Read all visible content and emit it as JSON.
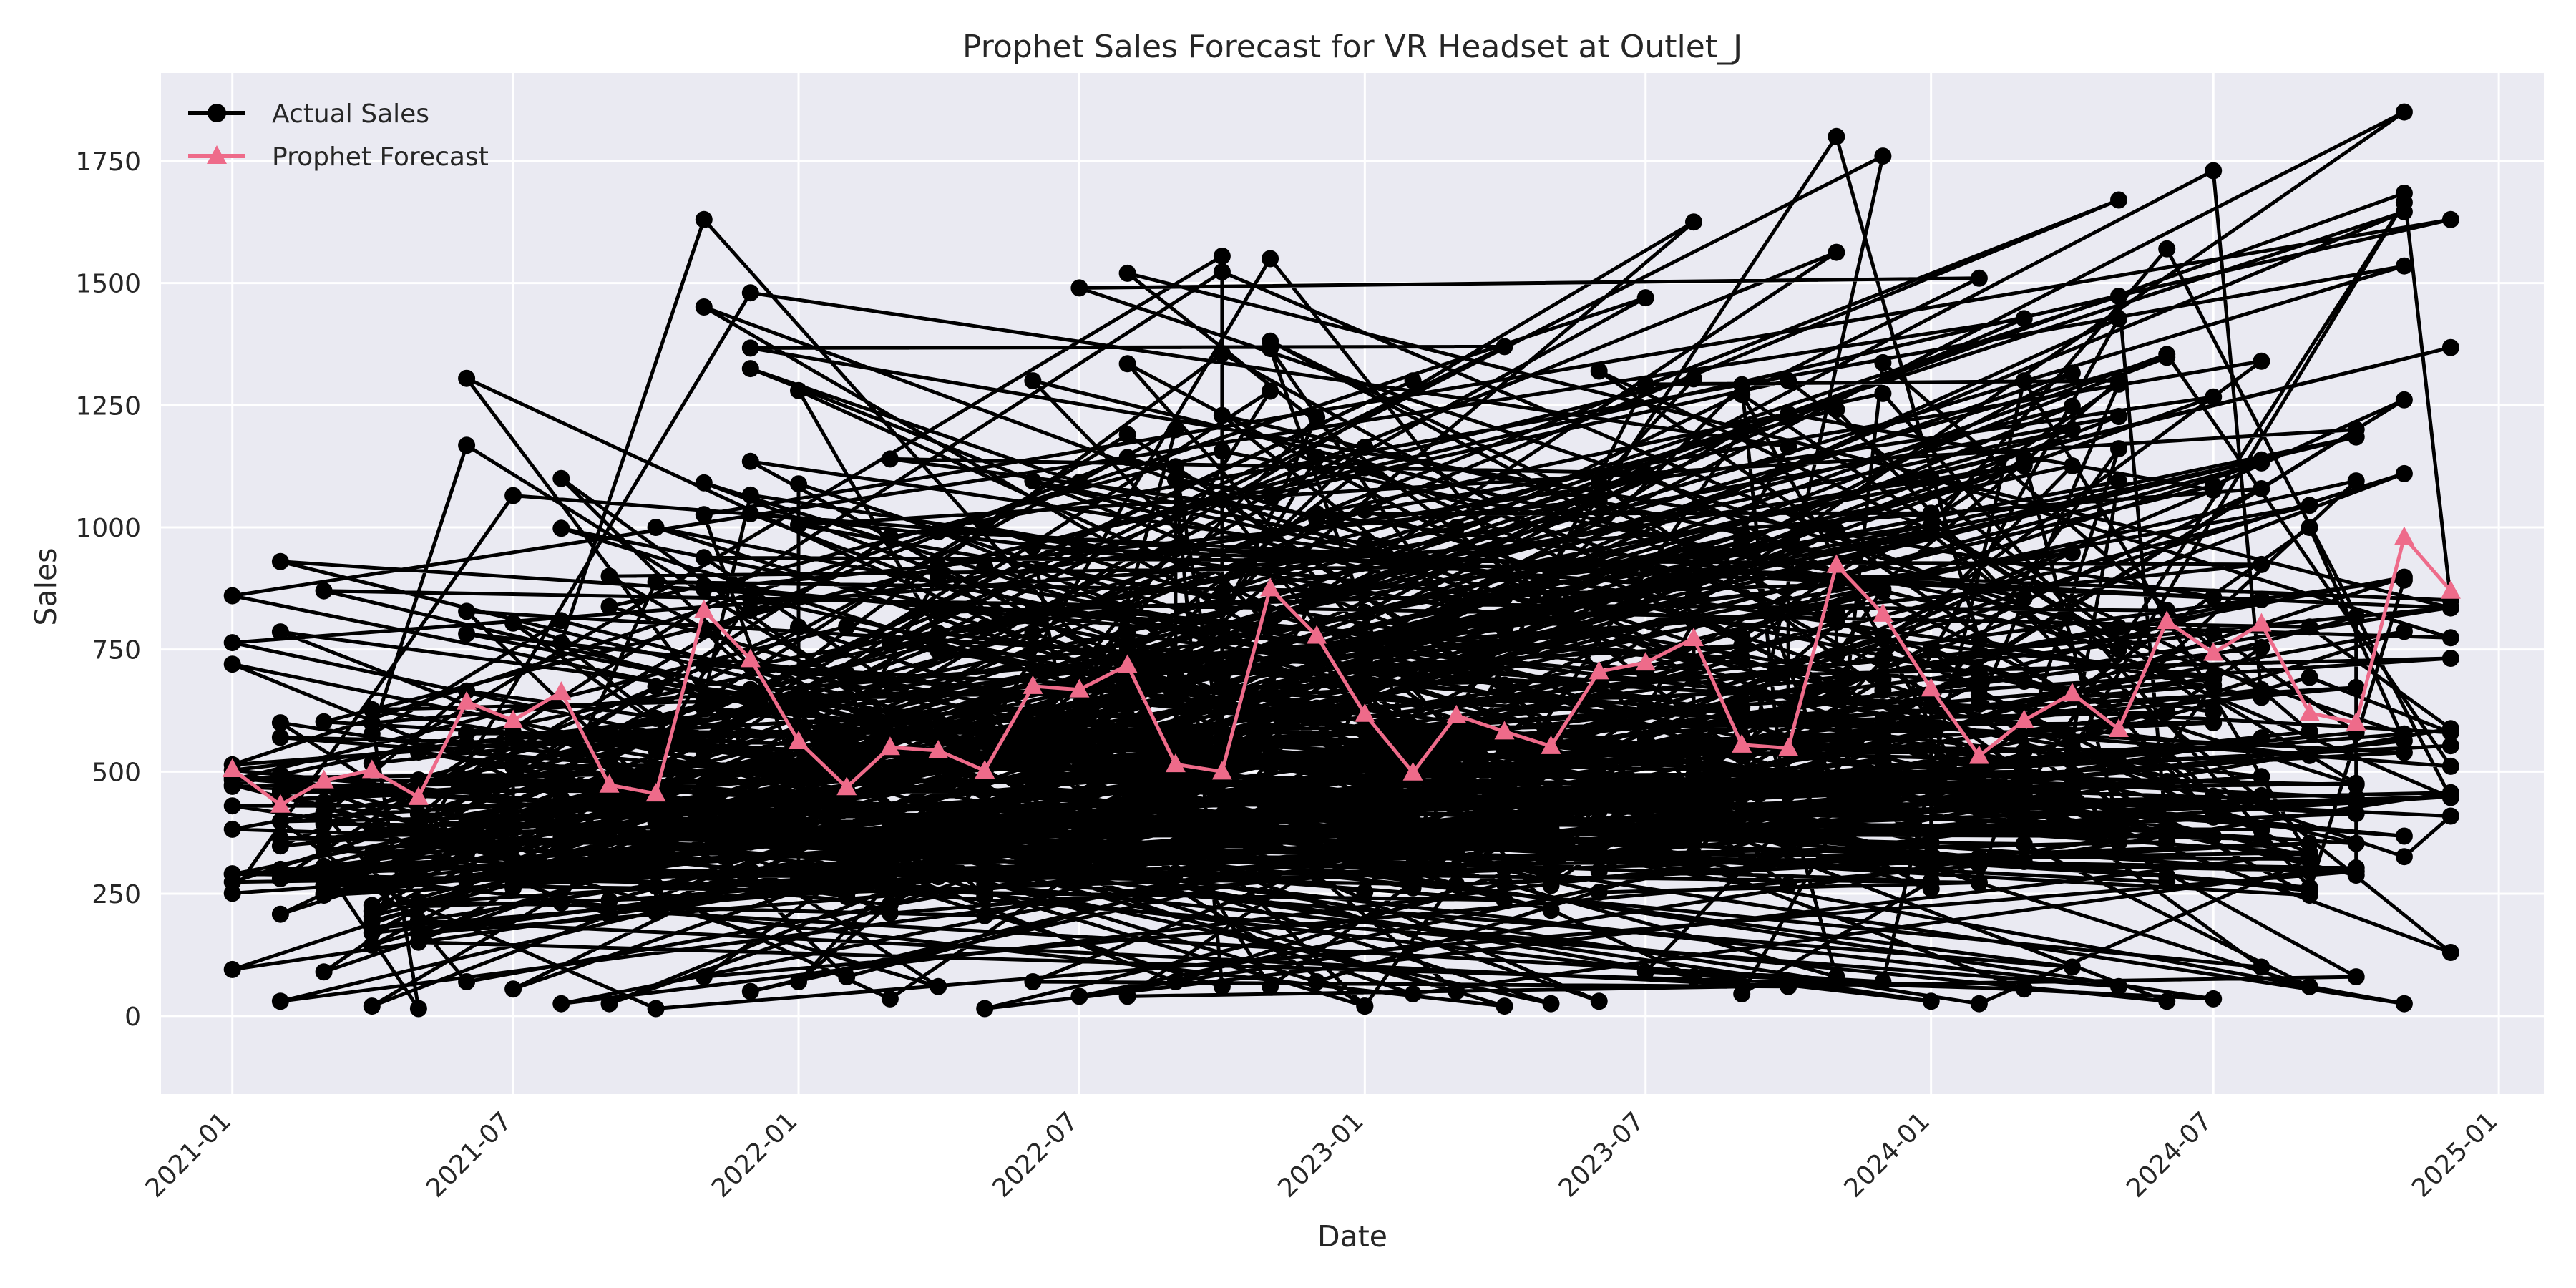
{
  "chart_data": {
    "type": "line",
    "title": "Prophet Sales Forecast for VR Headset at Outlet_J",
    "xlabel": "Date",
    "ylabel": "Sales",
    "x_range": [
      "2020-11-16",
      "2025-01-30"
    ],
    "ylim": [
      -160,
      1930
    ],
    "grid": true,
    "legend": "top-left",
    "colors": {
      "actual": "#000000",
      "forecast": "#ee6b8a",
      "background": "#eaeaf2",
      "grid": "#ffffff"
    },
    "x_ticks": [
      "2021-01",
      "2021-07",
      "2022-01",
      "2022-07",
      "2023-01",
      "2023-07",
      "2024-01",
      "2024-07",
      "2025-01"
    ],
    "y_ticks": [
      0,
      250,
      500,
      750,
      1000,
      1250,
      1500,
      1750
    ],
    "months": [
      "2021-01",
      "2021-02",
      "2021-03",
      "2021-04",
      "2021-05",
      "2021-06",
      "2021-07",
      "2021-08",
      "2021-09",
      "2021-10",
      "2021-11",
      "2021-12",
      "2022-01",
      "2022-02",
      "2022-03",
      "2022-04",
      "2022-05",
      "2022-06",
      "2022-07",
      "2022-08",
      "2022-09",
      "2022-10",
      "2022-11",
      "2022-12",
      "2023-01",
      "2023-02",
      "2023-03",
      "2023-04",
      "2023-05",
      "2023-06",
      "2023-07",
      "2023-08",
      "2023-09",
      "2023-10",
      "2023-11",
      "2023-12",
      "2024-01",
      "2024-02",
      "2024-03",
      "2024-04",
      "2024-05",
      "2024-06",
      "2024-07",
      "2024-08",
      "2024-09",
      "2024-10",
      "2024-11",
      "2024-12"
    ],
    "series": [
      {
        "name": "Actual Sales",
        "marker": "circle",
        "x": [
          "2021-01",
          "2021-02",
          "2021-03",
          "2021-04",
          "2021-05",
          "2021-06",
          "2021-07",
          "2021-08",
          "2021-09",
          "2021-10",
          "2021-11",
          "2021-12",
          "2022-01",
          "2022-02",
          "2022-03",
          "2022-04",
          "2022-05",
          "2022-06",
          "2022-07",
          "2022-08",
          "2022-09",
          "2022-10",
          "2022-11",
          "2022-12",
          "2023-01",
          "2023-02",
          "2023-03",
          "2023-04",
          "2023-05",
          "2023-06",
          "2023-07",
          "2023-08",
          "2023-09",
          "2023-10",
          "2023-11",
          "2023-12",
          "2024-01",
          "2024-02",
          "2024-03",
          "2024-04",
          "2024-05",
          "2024-06",
          "2024-07",
          "2024-08",
          "2024-09",
          "2024-10",
          "2024-11",
          "2024-12"
        ],
        "sample_values": [
          860,
          930,
          870,
          600,
          540,
          1305,
          1065,
          1100,
          900,
          1000,
          1630,
          1480,
          1280,
          700,
          1140,
          900,
          1000,
          1300,
          1490,
          1520,
          1200,
          1555,
          1550,
          800,
          20,
          1300,
          1000,
          1370,
          900,
          1320,
          1470,
          1625,
          1200,
          1300,
          1800,
          1760,
          1100,
          1510,
          1300,
          1200,
          1670,
          1570,
          1730,
          1340,
          1000,
          1200,
          1850,
          1630
        ],
        "envelope_min": [
          95,
          30,
          90,
          20,
          15,
          70,
          55,
          25,
          25,
          15,
          80,
          50,
          70,
          80,
          35,
          60,
          15,
          70,
          40,
          40,
          70,
          60,
          60,
          70,
          20,
          45,
          50,
          20,
          25,
          30,
          90,
          80,
          45,
          60,
          80,
          70,
          30,
          25,
          55,
          100,
          60,
          30,
          35,
          100,
          60,
          80,
          25,
          130
        ],
        "envelope_max": [
          860,
          935,
          870,
          720,
          760,
          1305,
          1065,
          1100,
          1000,
          1150,
          1630,
          1480,
          1280,
          1080,
          1140,
          1100,
          1150,
          1305,
          1490,
          1520,
          1300,
          1555,
          1550,
          1400,
          1300,
          1300,
          1250,
          1370,
          1250,
          1320,
          1470,
          1625,
          1350,
          1350,
          1800,
          1760,
          1300,
          1510,
          1500,
          1450,
          1670,
          1570,
          1730,
          1340,
          1250,
          1320,
          1855,
          1630
        ]
      },
      {
        "name": "Prophet Forecast",
        "marker": "triangle",
        "x": [
          "2021-01",
          "2021-02",
          "2021-03",
          "2021-04",
          "2021-05",
          "2021-06",
          "2021-07",
          "2021-08",
          "2021-09",
          "2021-10",
          "2021-11",
          "2021-12",
          "2022-01",
          "2022-02",
          "2022-03",
          "2022-04",
          "2022-05",
          "2022-06",
          "2022-07",
          "2022-08",
          "2022-09",
          "2022-10",
          "2022-11",
          "2022-12",
          "2023-01",
          "2023-02",
          "2023-03",
          "2023-04",
          "2023-05",
          "2023-06",
          "2023-07",
          "2023-08",
          "2023-09",
          "2023-10",
          "2023-11",
          "2023-12",
          "2024-01",
          "2024-02",
          "2024-03",
          "2024-04",
          "2024-05",
          "2024-06",
          "2024-07",
          "2024-08",
          "2024-09",
          "2024-10",
          "2024-11",
          "2024-12"
        ],
        "values": [
          505,
          432,
          482,
          503,
          448,
          643,
          605,
          663,
          473,
          455,
          830,
          730,
          562,
          468,
          550,
          543,
          502,
          675,
          668,
          718,
          515,
          500,
          875,
          778,
          618,
          498,
          615,
          582,
          552,
          705,
          723,
          773,
          555,
          548,
          923,
          823,
          670,
          532,
          605,
          660,
          587,
          808,
          743,
          803,
          620,
          600,
          980,
          870
        ]
      }
    ]
  }
}
